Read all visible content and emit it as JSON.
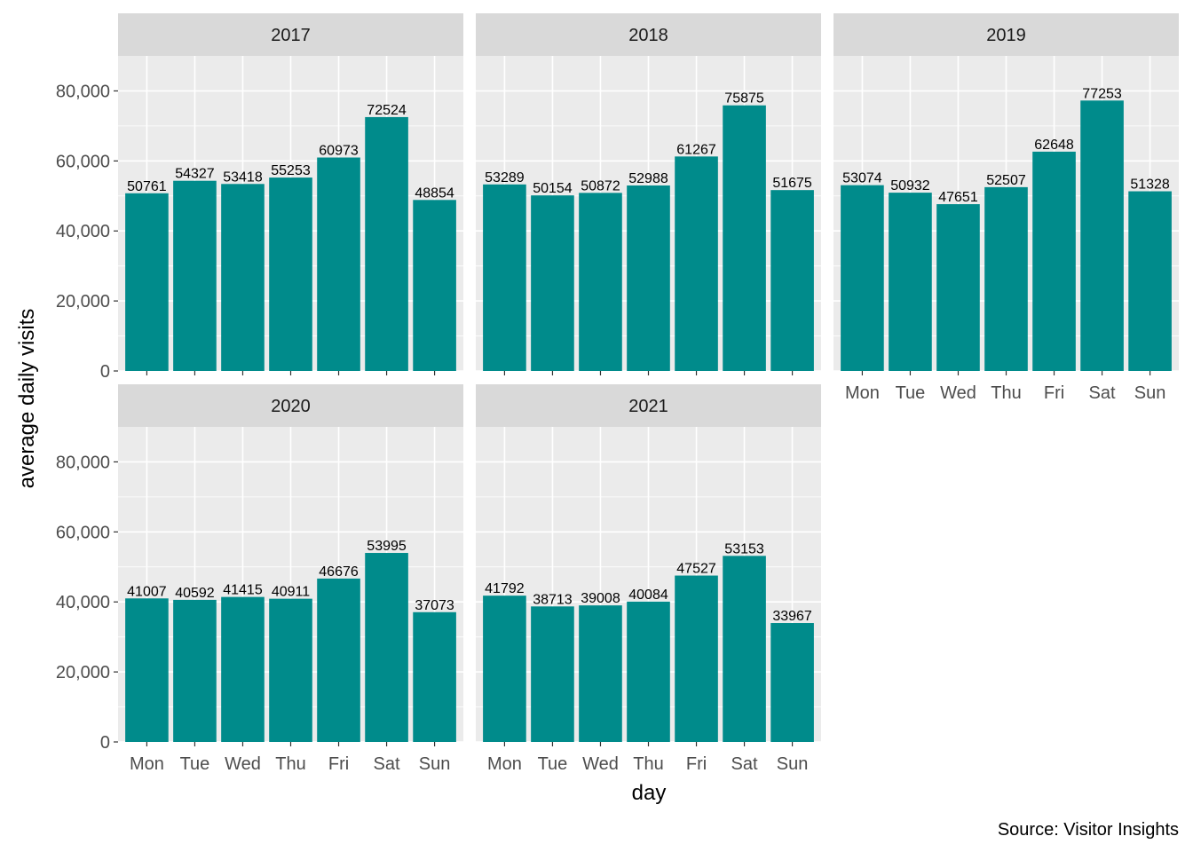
{
  "chart_data": {
    "type": "bar",
    "ylabel": "average daily visits",
    "xlabel": "day",
    "caption": "Source: Visitor Insights",
    "categories": [
      "Mon",
      "Tue",
      "Wed",
      "Thu",
      "Fri",
      "Sat",
      "Sun"
    ],
    "ylim": [
      0,
      90000
    ],
    "y_ticks": [
      0,
      20000,
      40000,
      60000,
      80000
    ],
    "y_tick_labels": [
      "0",
      "20,000",
      "40,000",
      "60,000",
      "80,000"
    ],
    "bar_color": "#008B8B",
    "panel_background": "#EBEBEB",
    "strip_background": "#D9D9D9",
    "grid": true,
    "facets": [
      {
        "name": "2017",
        "values": [
          50761,
          54327,
          53418,
          55253,
          60973,
          72524,
          48854
        ]
      },
      {
        "name": "2018",
        "values": [
          53289,
          50154,
          50872,
          52988,
          61267,
          75875,
          51675
        ]
      },
      {
        "name": "2019",
        "values": [
          53074,
          50932,
          47651,
          52507,
          62648,
          77253,
          51328
        ]
      },
      {
        "name": "2020",
        "values": [
          41007,
          40592,
          41415,
          40911,
          46676,
          53995,
          37073
        ]
      },
      {
        "name": "2021",
        "values": [
          41792,
          38713,
          39008,
          40084,
          47527,
          53153,
          33967
        ]
      }
    ]
  }
}
